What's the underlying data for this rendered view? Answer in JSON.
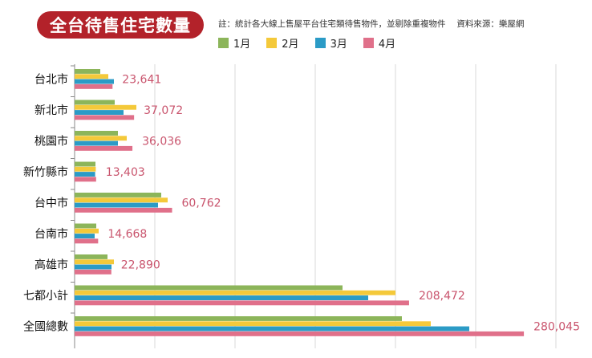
{
  "title": "全台待售住宅數量",
  "note": "註：統計各大線上售屋平台住宅類待售物件，並剔除重複物件　 資料來源：樂屋網",
  "chart_data": {
    "type": "bar",
    "orientation": "horizontal",
    "categories": [
      "台北市",
      "新北市",
      "桃園市",
      "新竹縣市",
      "台中市",
      "台南市",
      "高雄市",
      "七都小計",
      "全國總數"
    ],
    "series": [
      {
        "name": "1月",
        "color": "#8cb55a",
        "values": [
          16000,
          25000,
          27000,
          13000,
          54000,
          13500,
          20500,
          167000,
          204000
        ]
      },
      {
        "name": "2月",
        "color": "#f4c93a",
        "values": [
          21000,
          38500,
          32500,
          13200,
          58000,
          15000,
          24500,
          200000,
          222000
        ]
      },
      {
        "name": "3月",
        "color": "#2b9bc6",
        "values": [
          24500,
          30500,
          27000,
          12800,
          52000,
          12500,
          23000,
          183000,
          246000
        ]
      },
      {
        "name": "4月",
        "color": "#e0708a",
        "values": [
          23641,
          37072,
          36036,
          13403,
          60762,
          14668,
          22890,
          208472,
          280045
        ]
      }
    ],
    "value_labels": [
      "23,641",
      "37,072",
      "36,036",
      "13,403",
      "60,762",
      "14,668",
      "22,890",
      "208,472",
      "280,045"
    ],
    "xlim": [
      0,
      300000
    ],
    "grid": true,
    "legend": "top"
  }
}
